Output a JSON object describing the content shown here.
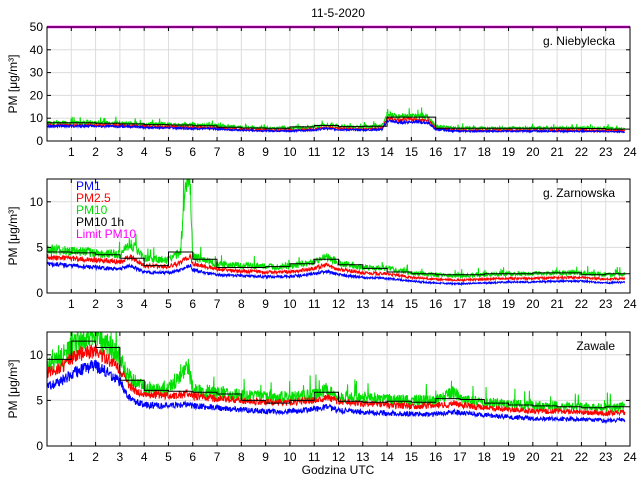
{
  "figure": {
    "title": "11-5-2020",
    "xlabel": "Godzina UTC"
  },
  "colors": {
    "PM1": "#0000ff",
    "PM2.5": "#ff0000",
    "PM10": "#00e000",
    "PM10 1h": "#000000",
    "Limit PM10": "#ff00ff"
  },
  "chart_data": [
    {
      "type": "line",
      "title": "g. Niebylecka",
      "xlabel": "",
      "ylabel": "PM [μg/m³]",
      "xlim": [
        0,
        24
      ],
      "ylim": [
        0,
        50
      ],
      "xticks": [
        "1",
        "2",
        "3",
        "4",
        "5",
        "6",
        "7",
        "8",
        "9",
        "10",
        "11",
        "12",
        "13",
        "14",
        "15",
        "16",
        "17",
        "18",
        "19",
        "20",
        "21",
        "22",
        "23",
        "24"
      ],
      "yticks": [
        "0",
        "10",
        "20",
        "30",
        "40",
        "50"
      ],
      "grid": true,
      "limit_pm10": 50,
      "series": [
        {
          "name": "PM1",
          "x": [
            0,
            1,
            2,
            3,
            4,
            5,
            6,
            7,
            8,
            9,
            10,
            11,
            11.5,
            12,
            13,
            13.8,
            14,
            14.5,
            15,
            15.7,
            16,
            17,
            18,
            19,
            20,
            21,
            22,
            23,
            23.8
          ],
          "values": [
            6.5,
            6.5,
            6.5,
            6.3,
            6,
            5.8,
            5.5,
            5.3,
            4.7,
            4.5,
            4.4,
            4.8,
            5.5,
            5,
            4.8,
            5,
            9,
            8,
            8.5,
            8,
            5,
            4.3,
            4.3,
            4.3,
            4.3,
            4.3,
            4.3,
            4.2,
            4
          ]
        },
        {
          "name": "PM2.5",
          "x": [
            0,
            1,
            2,
            3,
            4,
            5,
            6,
            7,
            8,
            9,
            10,
            11,
            11.5,
            12,
            13,
            13.8,
            14,
            14.5,
            15,
            15.7,
            16,
            17,
            18,
            19,
            20,
            21,
            22,
            23,
            23.8
          ],
          "values": [
            7,
            7,
            7,
            6.8,
            6.5,
            6.2,
            6,
            5.7,
            5,
            4.8,
            4.7,
            5.2,
            6,
            5.5,
            5.2,
            5.5,
            10,
            9,
            9.5,
            9,
            5.5,
            4.7,
            4.7,
            4.7,
            4.7,
            4.7,
            4.7,
            4.6,
            4.4
          ]
        },
        {
          "name": "PM10",
          "x": [
            0,
            1,
            2,
            3,
            4,
            5,
            6,
            7,
            8,
            9,
            10,
            11,
            11.5,
            12,
            13,
            13.8,
            14,
            14.5,
            15,
            15.7,
            16,
            17,
            18,
            19,
            20,
            21,
            22,
            23,
            23.8
          ],
          "values": [
            8,
            8,
            8,
            7.8,
            7.5,
            7.2,
            7,
            6.7,
            6,
            5.7,
            5.6,
            6.2,
            7,
            6.5,
            6.2,
            6.5,
            12,
            10.5,
            11,
            10.5,
            6.5,
            5.6,
            5.6,
            5.6,
            5.6,
            5.6,
            5.6,
            5.5,
            5.2
          ]
        },
        {
          "name": "PM10 1h",
          "x": [
            0.5,
            1.5,
            2.5,
            3.5,
            4.5,
            5.5,
            6.5,
            7.5,
            8.5,
            9.5,
            10.5,
            11.5,
            12.5,
            13.5,
            14.5,
            15.5,
            16.5,
            17.5,
            18.5,
            19.5,
            20.5,
            21.5,
            22.5,
            23.5
          ],
          "values": [
            8,
            8,
            7.8,
            7.5,
            7.2,
            7,
            6.7,
            6,
            5.7,
            5.6,
            6.2,
            6.8,
            6.3,
            6.5,
            10.5,
            10.5,
            5.6,
            5.6,
            5.6,
            5.6,
            5.6,
            5.6,
            5.5,
            5.2
          ]
        }
      ]
    },
    {
      "type": "line",
      "title": "g. Zarnowska",
      "xlabel": "",
      "ylabel": "PM [μg/m³]",
      "xlim": [
        0,
        24
      ],
      "ylim": [
        0,
        12.5
      ],
      "xticks": [
        "1",
        "2",
        "3",
        "4",
        "5",
        "6",
        "7",
        "8",
        "9",
        "10",
        "11",
        "12",
        "13",
        "14",
        "15",
        "16",
        "17",
        "18",
        "19",
        "20",
        "21",
        "22",
        "23",
        "24"
      ],
      "yticks": [
        "0",
        "5",
        "10"
      ],
      "grid": true,
      "legend": [
        "PM1",
        "PM2.5",
        "PM10",
        "PM10 1h",
        "Limit PM10"
      ],
      "legend_position": "top-left",
      "series": [
        {
          "name": "PM1",
          "x": [
            0,
            1,
            2,
            3,
            3.4,
            4,
            5,
            5.5,
            5.7,
            5.9,
            6,
            7,
            8,
            9,
            10,
            11,
            11.5,
            12,
            13,
            14,
            15,
            16,
            17,
            18,
            19,
            20,
            21,
            22,
            23,
            23.8
          ],
          "values": [
            3.2,
            3,
            2.8,
            2.6,
            3,
            2.3,
            2.2,
            2.5,
            2.8,
            3,
            2.5,
            2,
            1.9,
            1.8,
            1.8,
            2.1,
            2.4,
            2,
            1.7,
            1.6,
            1.3,
            1.1,
            1,
            1.1,
            1.2,
            1.2,
            1.3,
            1.3,
            1.1,
            1.2
          ]
        },
        {
          "name": "PM2.5",
          "x": [
            0,
            1,
            2,
            3,
            3.4,
            4,
            5,
            5.5,
            5.7,
            5.9,
            6,
            7,
            8,
            9,
            10,
            11,
            11.5,
            12,
            13,
            14,
            15,
            16,
            17,
            18,
            19,
            20,
            21,
            22,
            23,
            23.8
          ],
          "values": [
            4,
            3.8,
            3.6,
            3.4,
            4,
            3,
            2.9,
            3.3,
            3.8,
            4,
            3.2,
            2.6,
            2.4,
            2.3,
            2.3,
            2.7,
            3.1,
            2.6,
            2.2,
            2.1,
            1.7,
            1.5,
            1.4,
            1.5,
            1.6,
            1.6,
            1.7,
            1.7,
            1.5,
            1.6
          ]
        },
        {
          "name": "PM10",
          "x": [
            0,
            1,
            2,
            3,
            3.4,
            4,
            5,
            5.5,
            5.7,
            5.9,
            6,
            7,
            8,
            9,
            10,
            11,
            11.5,
            12,
            13,
            14,
            15,
            16,
            17,
            18,
            19,
            20,
            21,
            22,
            23,
            23.8
          ],
          "values": [
            4.8,
            4.6,
            4.4,
            4.2,
            5.5,
            3.8,
            3.6,
            4.5,
            12,
            11.5,
            4,
            3.2,
            3,
            2.9,
            2.9,
            3.4,
            4,
            3.3,
            2.8,
            2.7,
            2.2,
            2,
            1.9,
            2,
            2.1,
            2.1,
            2.2,
            2.2,
            2,
            2.1
          ]
        },
        {
          "name": "PM10 1h",
          "x": [
            0.5,
            1.5,
            2.5,
            3.5,
            4.5,
            5.5,
            6.5,
            7.5,
            8.5,
            9.5,
            10.5,
            11.5,
            12.5,
            13.5,
            14.5,
            15.5,
            16.5,
            17.5,
            18.5,
            19.5,
            20.5,
            21.5,
            22.5,
            23.5
          ],
          "values": [
            4.5,
            4.4,
            4.2,
            3.8,
            3,
            4.5,
            3.7,
            2.8,
            2.8,
            2.9,
            3.2,
            3.7,
            3.1,
            2.7,
            2.3,
            2.1,
            2,
            2,
            2.1,
            2.1,
            2.2,
            2.2,
            2,
            2.1
          ]
        }
      ]
    },
    {
      "type": "line",
      "title": "Zawale",
      "xlabel": "Godzina UTC",
      "ylabel": "PM [μg/m³]",
      "xlim": [
        0,
        24
      ],
      "ylim": [
        0,
        12.5
      ],
      "xticks": [
        "1",
        "2",
        "3",
        "4",
        "5",
        "6",
        "7",
        "8",
        "9",
        "10",
        "11",
        "12",
        "13",
        "14",
        "15",
        "16",
        "17",
        "18",
        "19",
        "20",
        "21",
        "22",
        "23",
        "24"
      ],
      "yticks": [
        "0",
        "5",
        "10"
      ],
      "grid": true,
      "series": [
        {
          "name": "PM1",
          "x": [
            0,
            0.5,
            1,
            1.5,
            2,
            2.5,
            3,
            3.3,
            3.7,
            4,
            5,
            5.8,
            6,
            7,
            8,
            9,
            10,
            11,
            11.5,
            12,
            13,
            14,
            15,
            16,
            16.8,
            17,
            18,
            19,
            20,
            21,
            22,
            23,
            23.8
          ],
          "values": [
            6.5,
            7,
            7.8,
            8.5,
            8.8,
            8,
            7,
            5.5,
            4.8,
            4.5,
            4.4,
            4.6,
            4.4,
            4.2,
            4,
            3.8,
            3.8,
            4,
            4.3,
            3.9,
            3.7,
            3.6,
            3.5,
            3.5,
            3.8,
            3.6,
            3.4,
            3.2,
            3,
            3,
            2.9,
            2.8,
            2.9
          ]
        },
        {
          "name": "PM2.5",
          "x": [
            0,
            0.5,
            1,
            1.5,
            2,
            2.5,
            3,
            3.3,
            3.7,
            4,
            5,
            5.8,
            6,
            7,
            8,
            9,
            10,
            11,
            11.5,
            12,
            13,
            14,
            15,
            16,
            16.8,
            17,
            18,
            19,
            20,
            21,
            22,
            23,
            23.8
          ],
          "values": [
            8,
            8.5,
            9.5,
            10.2,
            10.5,
            9.5,
            8.5,
            6.8,
            6,
            5.7,
            5.5,
            5.7,
            5.5,
            5.2,
            5,
            4.8,
            4.8,
            5,
            5.4,
            4.9,
            4.6,
            4.5,
            4.4,
            4.4,
            4.7,
            4.5,
            4.2,
            4,
            3.8,
            3.8,
            3.7,
            3.6,
            3.7
          ]
        },
        {
          "name": "PM10",
          "x": [
            0,
            0.5,
            1,
            1.5,
            2,
            2.5,
            3,
            3.3,
            3.7,
            4,
            5,
            5.8,
            6,
            7,
            8,
            9,
            10,
            11,
            11.5,
            12,
            13,
            14,
            15,
            16,
            16.8,
            17,
            18,
            19,
            20,
            21,
            22,
            23,
            23.8
          ],
          "values": [
            9,
            9.5,
            10.8,
            11.8,
            12,
            11,
            9.8,
            7.8,
            6.8,
            6.4,
            6.2,
            9,
            6.2,
            5.9,
            5.6,
            5.4,
            5.4,
            5.6,
            6.2,
            5.5,
            5.2,
            5.1,
            5,
            5,
            6,
            5.1,
            4.8,
            4.6,
            4.4,
            4.4,
            4.3,
            4.2,
            4.3
          ]
        },
        {
          "name": "PM10 1h",
          "x": [
            0.5,
            1.5,
            2.5,
            3.5,
            4.5,
            5.5,
            6.5,
            7.5,
            8.5,
            9.5,
            10.5,
            11.5,
            12.5,
            13.5,
            14.5,
            15.5,
            16.5,
            17.5,
            18.5,
            19.5,
            20.5,
            21.5,
            22.5,
            23.5
          ],
          "values": [
            9.5,
            11.5,
            10.8,
            7.2,
            6.1,
            6,
            5.9,
            5.7,
            5,
            4.7,
            5,
            5.9,
            4.9,
            4.8,
            4.9,
            4.8,
            5.2,
            5.1,
            4.7,
            4.5,
            4.4,
            4.3,
            4.2,
            4.3
          ]
        }
      ]
    }
  ]
}
